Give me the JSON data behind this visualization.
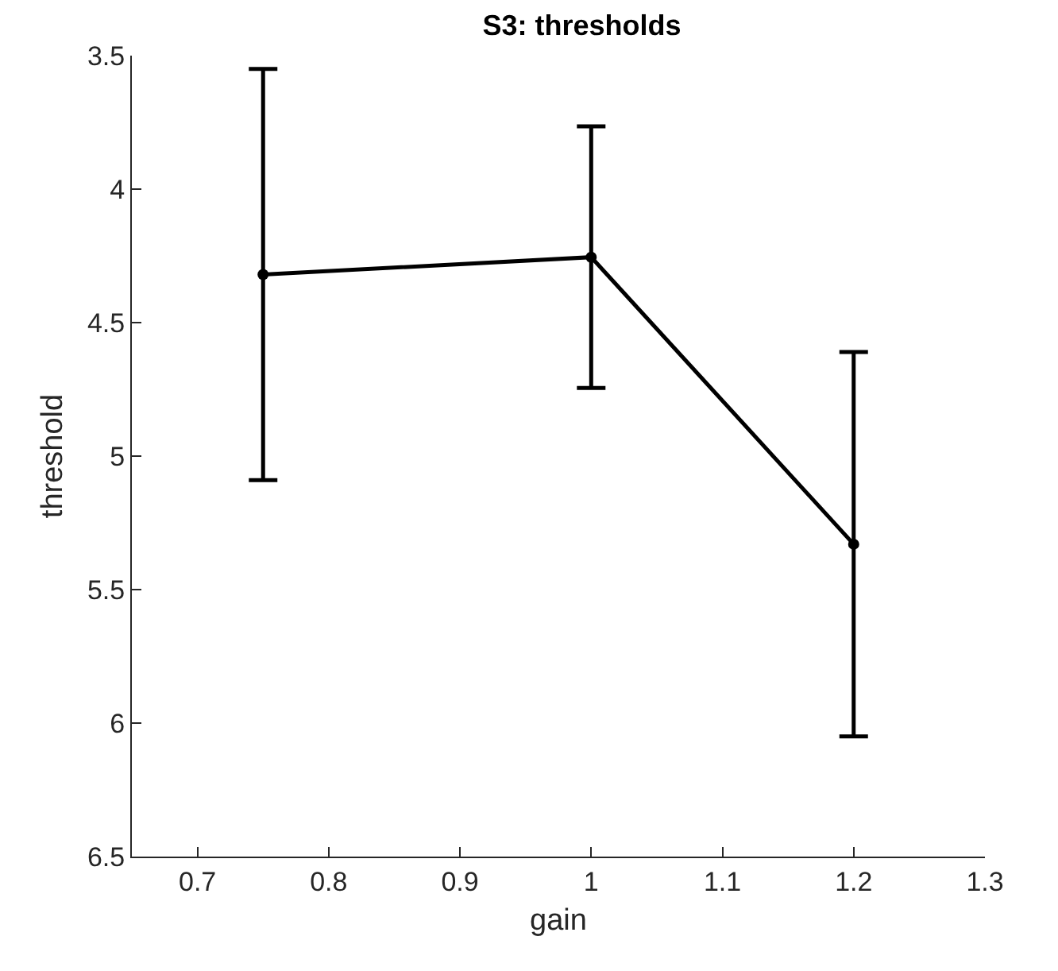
{
  "chart_data": {
    "type": "line",
    "title": "S3: thresholds",
    "xlabel": "gain",
    "ylabel": "threshold",
    "x": [
      0.75,
      1,
      1.2
    ],
    "series": [
      {
        "color": "#000000",
        "values": [
          4.32,
          4.255,
          5.33
        ],
        "errors": [
          0.77,
          0.49,
          0.72
        ]
      }
    ],
    "xlim": [
      0.65,
      1.3
    ],
    "xticks": [
      0.7,
      0.8,
      0.9,
      1,
      1.1,
      1.2,
      1.3
    ],
    "ylim": [
      6.5,
      3.5
    ],
    "yticks": [
      3.5,
      4,
      4.5,
      5,
      5.5,
      6,
      6.5
    ],
    "grid": false,
    "marker": "circle",
    "line_style": "solid"
  }
}
